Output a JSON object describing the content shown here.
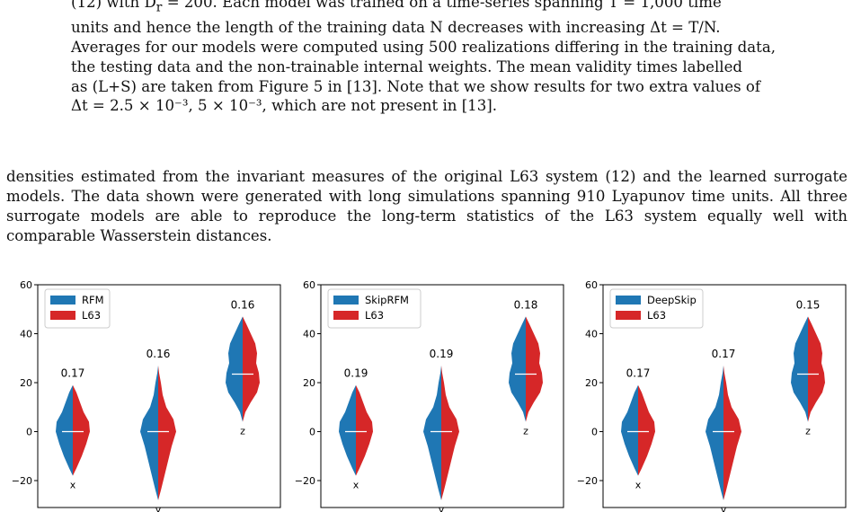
{
  "caption": {
    "line1": "(12) with D",
    "line1_sub": "r",
    "line1_rest": " = 200. Each model was trained on a time-series spanning T = 1,000 time",
    "line2": "units and hence the length of the training data N decreases with increasing Δt = T/N.",
    "line3": "Averages for our models were computed using 500 realizations differing in the training data,",
    "line4": "the testing data and the non-trainable internal weights. The mean validity times labelled",
    "line5": "as (L+S) are taken from Figure 5 in [13]. Note that we show results for two extra values of",
    "line6": "Δt = 2.5 × 10⁻³, 5 × 10⁻³, which are not present in [13]."
  },
  "body_text": "densities estimated from the invariant measures of the original L63 system (12) and the learned surrogate models. The data shown were generated with long simulations spanning 910 Lyapunov time units. All three surrogate models are able to reproduce the long-term statistics of the L63 system equally well with comparable Wasserstein distances.",
  "colors": {
    "model": "#1f77b4",
    "l63": "#d62728"
  },
  "chart_data": [
    {
      "type": "violin",
      "legend": [
        "RFM",
        "L63"
      ],
      "legend_position": "top-left",
      "yticks": [
        -20,
        0,
        20,
        40,
        60
      ],
      "ylim": [
        -31,
        60
      ],
      "categories": [
        "x",
        "y",
        "z"
      ],
      "wasserstein": [
        "0.17",
        "0.16",
        "0.16"
      ],
      "medians": [
        0,
        0,
        23.5
      ]
    },
    {
      "type": "violin",
      "legend": [
        "SkipRFM",
        "L63"
      ],
      "legend_position": "top-left",
      "yticks": [
        -20,
        0,
        20,
        40,
        60
      ],
      "ylim": [
        -31,
        60
      ],
      "categories": [
        "x",
        "y",
        "z"
      ],
      "wasserstein": [
        "0.19",
        "0.19",
        "0.18"
      ],
      "medians": [
        0,
        0,
        23.5
      ]
    },
    {
      "type": "violin",
      "legend": [
        "DeepSkip",
        "L63"
      ],
      "legend_position": "top-left",
      "yticks": [
        -20,
        0,
        20,
        40,
        60
      ],
      "ylim": [
        -31,
        60
      ],
      "categories": [
        "x",
        "y",
        "z"
      ],
      "wasserstein": [
        "0.17",
        "0.17",
        "0.15"
      ],
      "medians": [
        0,
        0,
        23.5
      ]
    }
  ]
}
